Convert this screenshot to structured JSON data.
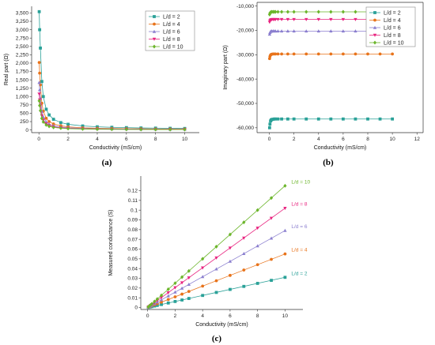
{
  "colors": {
    "L2": "#2aa198",
    "L4": "#e8731a",
    "L6": "#8b7fcf",
    "L8": "#e8237f",
    "L10": "#6bb52a"
  },
  "chart_data": [
    {
      "id": "a",
      "type": "line",
      "caption": "(a)",
      "xlabel": "Conductivity (mS/cm)",
      "ylabel": "Real part (Ω)",
      "xlim": [
        -0.5,
        11
      ],
      "ylim": [
        -80,
        3700
      ],
      "xticks": [
        0,
        2,
        4,
        6,
        8,
        10
      ],
      "yticks": [
        0,
        250,
        500,
        750,
        1000,
        1250,
        1500,
        1750,
        2000,
        2250,
        2500,
        2750,
        3000,
        3250,
        3500
      ],
      "ytick_labels": [
        "0",
        "250",
        "500",
        "750",
        "1,000",
        "1,250",
        "1,500",
        "1,750",
        "2,000",
        "2,250",
        "2,500",
        "2,750",
        "3,000",
        "3,250",
        "3,500"
      ],
      "legend_position": "top-right",
      "x": [
        0.02,
        0.05,
        0.1,
        0.2,
        0.3,
        0.5,
        0.7,
        1,
        1.5,
        2,
        3,
        4,
        5,
        6,
        7,
        8,
        9,
        10
      ],
      "series": [
        {
          "name": "L/d = 2",
          "values": [
            3540,
            3000,
            2450,
            1450,
            1000,
            620,
            450,
            320,
            220,
            170,
            120,
            95,
            80,
            70,
            60,
            55,
            50,
            45
          ]
        },
        {
          "name": "L/d = 4",
          "values": [
            2020,
            1700,
            1350,
            800,
            560,
            350,
            250,
            180,
            125,
            95,
            65,
            52,
            44,
            38,
            34,
            30,
            28,
            26
          ]
        },
        {
          "name": "L/d = 6",
          "values": [
            1420,
            1200,
            950,
            560,
            390,
            245,
            175,
            125,
            88,
            66,
            46,
            36,
            31,
            27,
            24,
            21,
            19,
            18
          ]
        },
        {
          "name": "L/d = 8",
          "values": [
            1080,
            900,
            720,
            430,
            300,
            185,
            135,
            95,
            67,
            50,
            35,
            28,
            23,
            20,
            18,
            16,
            15,
            14
          ]
        },
        {
          "name": "L/d = 10",
          "values": [
            870,
            730,
            580,
            345,
            240,
            150,
            108,
            77,
            54,
            40,
            28,
            22,
            19,
            16,
            14,
            13,
            12,
            11
          ]
        }
      ]
    },
    {
      "id": "b",
      "type": "line",
      "caption": "(b)",
      "xlabel": "Conductivity (mS/cm)",
      "ylabel": "Imaginary part (Ω)",
      "xlim": [
        -1,
        12.5
      ],
      "ylim": [
        -62000,
        -8500
      ],
      "xticks": [
        0,
        2,
        4,
        6,
        8,
        10,
        12
      ],
      "yticks": [
        -10000,
        -20000,
        -30000,
        -40000,
        -50000,
        -60000
      ],
      "ytick_labels": [
        "-10,000",
        "-20,000",
        "-30,000",
        "-40,000",
        "-50,000",
        "-60,000"
      ],
      "legend_position": "top-right",
      "x": [
        0.02,
        0.05,
        0.1,
        0.15,
        0.2,
        0.3,
        0.4,
        0.5,
        0.7,
        1,
        1.5,
        2,
        3,
        4,
        5,
        6,
        7,
        8,
        9,
        10
      ],
      "series": [
        {
          "name": "L/d = 2",
          "values": [
            -60000,
            -58500,
            -57200,
            -56800,
            -56600,
            -56500,
            -56400,
            -56400,
            -56400,
            -56400,
            -56400,
            -56400,
            -56400,
            -56400,
            -56400,
            -56400,
            -56400,
            -56400,
            -56400,
            -56400
          ]
        },
        {
          "name": "L/d = 4",
          "values": [
            -31600,
            -30700,
            -30100,
            -29900,
            -29800,
            -29700,
            -29700,
            -29700,
            -29700,
            -29700,
            -29700,
            -29700,
            -29700,
            -29700,
            -29700,
            -29700,
            -29700,
            -29700,
            -29700,
            -29700
          ]
        },
        {
          "name": "L/d = 6",
          "values": [
            -21600,
            -20900,
            -20500,
            -20400,
            -20300,
            -20300,
            -20300,
            -20300,
            -20300,
            -20300,
            -20300,
            -20300,
            -20300,
            -20300,
            -20300,
            -20300,
            -20300,
            -20300,
            -20300,
            -20300
          ]
        },
        {
          "name": "L/d = 8",
          "values": [
            -16600,
            -16000,
            -15700,
            -15600,
            -15500,
            -15500,
            -15500,
            -15500,
            -15500,
            -15500,
            -15500,
            -15500,
            -15500,
            -15500,
            -15500,
            -15500,
            -15500,
            -15500,
            -15500,
            -15500
          ]
        },
        {
          "name": "L/d = 10",
          "values": [
            -13500,
            -12900,
            -12600,
            -12500,
            -12400,
            -12400,
            -12400,
            -12400,
            -12400,
            -12400,
            -12400,
            -12400,
            -12400,
            -12400,
            -12400,
            -12400,
            -12400,
            -12400,
            -12400,
            -12400
          ]
        }
      ]
    },
    {
      "id": "c",
      "type": "line",
      "caption": "(c)",
      "xlabel": "Conductivity (mS/cm)",
      "ylabel": "Measured conductance (S)",
      "xlim": [
        -0.5,
        11.3
      ],
      "ylim": [
        -0.002,
        0.135
      ],
      "xticks": [
        0,
        2,
        4,
        6,
        8,
        10
      ],
      "yticks": [
        0,
        0.01,
        0.02,
        0.03,
        0.04,
        0.05,
        0.06,
        0.07,
        0.08,
        0.09,
        0.1,
        0.11,
        0.12
      ],
      "ytick_labels": [
        "0",
        "0.01",
        "0.02",
        "0.03",
        "0.04",
        "0.05",
        "0.06",
        "0.07",
        "0.08",
        "0.09",
        "0.1",
        "0.11",
        "0.12"
      ],
      "x": [
        0.05,
        0.1,
        0.2,
        0.3,
        0.5,
        0.7,
        1,
        1.5,
        2,
        2.5,
        3,
        4,
        5,
        6,
        7,
        8,
        9,
        10
      ],
      "series": [
        {
          "name": "L/d = 2",
          "slope": 0.0031
        },
        {
          "name": "L/d = 4",
          "slope": 0.0055
        },
        {
          "name": "L/d = 6",
          "slope": 0.0079
        },
        {
          "name": "L/d = 8",
          "slope": 0.0102
        },
        {
          "name": "L/d = 10",
          "slope": 0.0125
        }
      ]
    }
  ]
}
